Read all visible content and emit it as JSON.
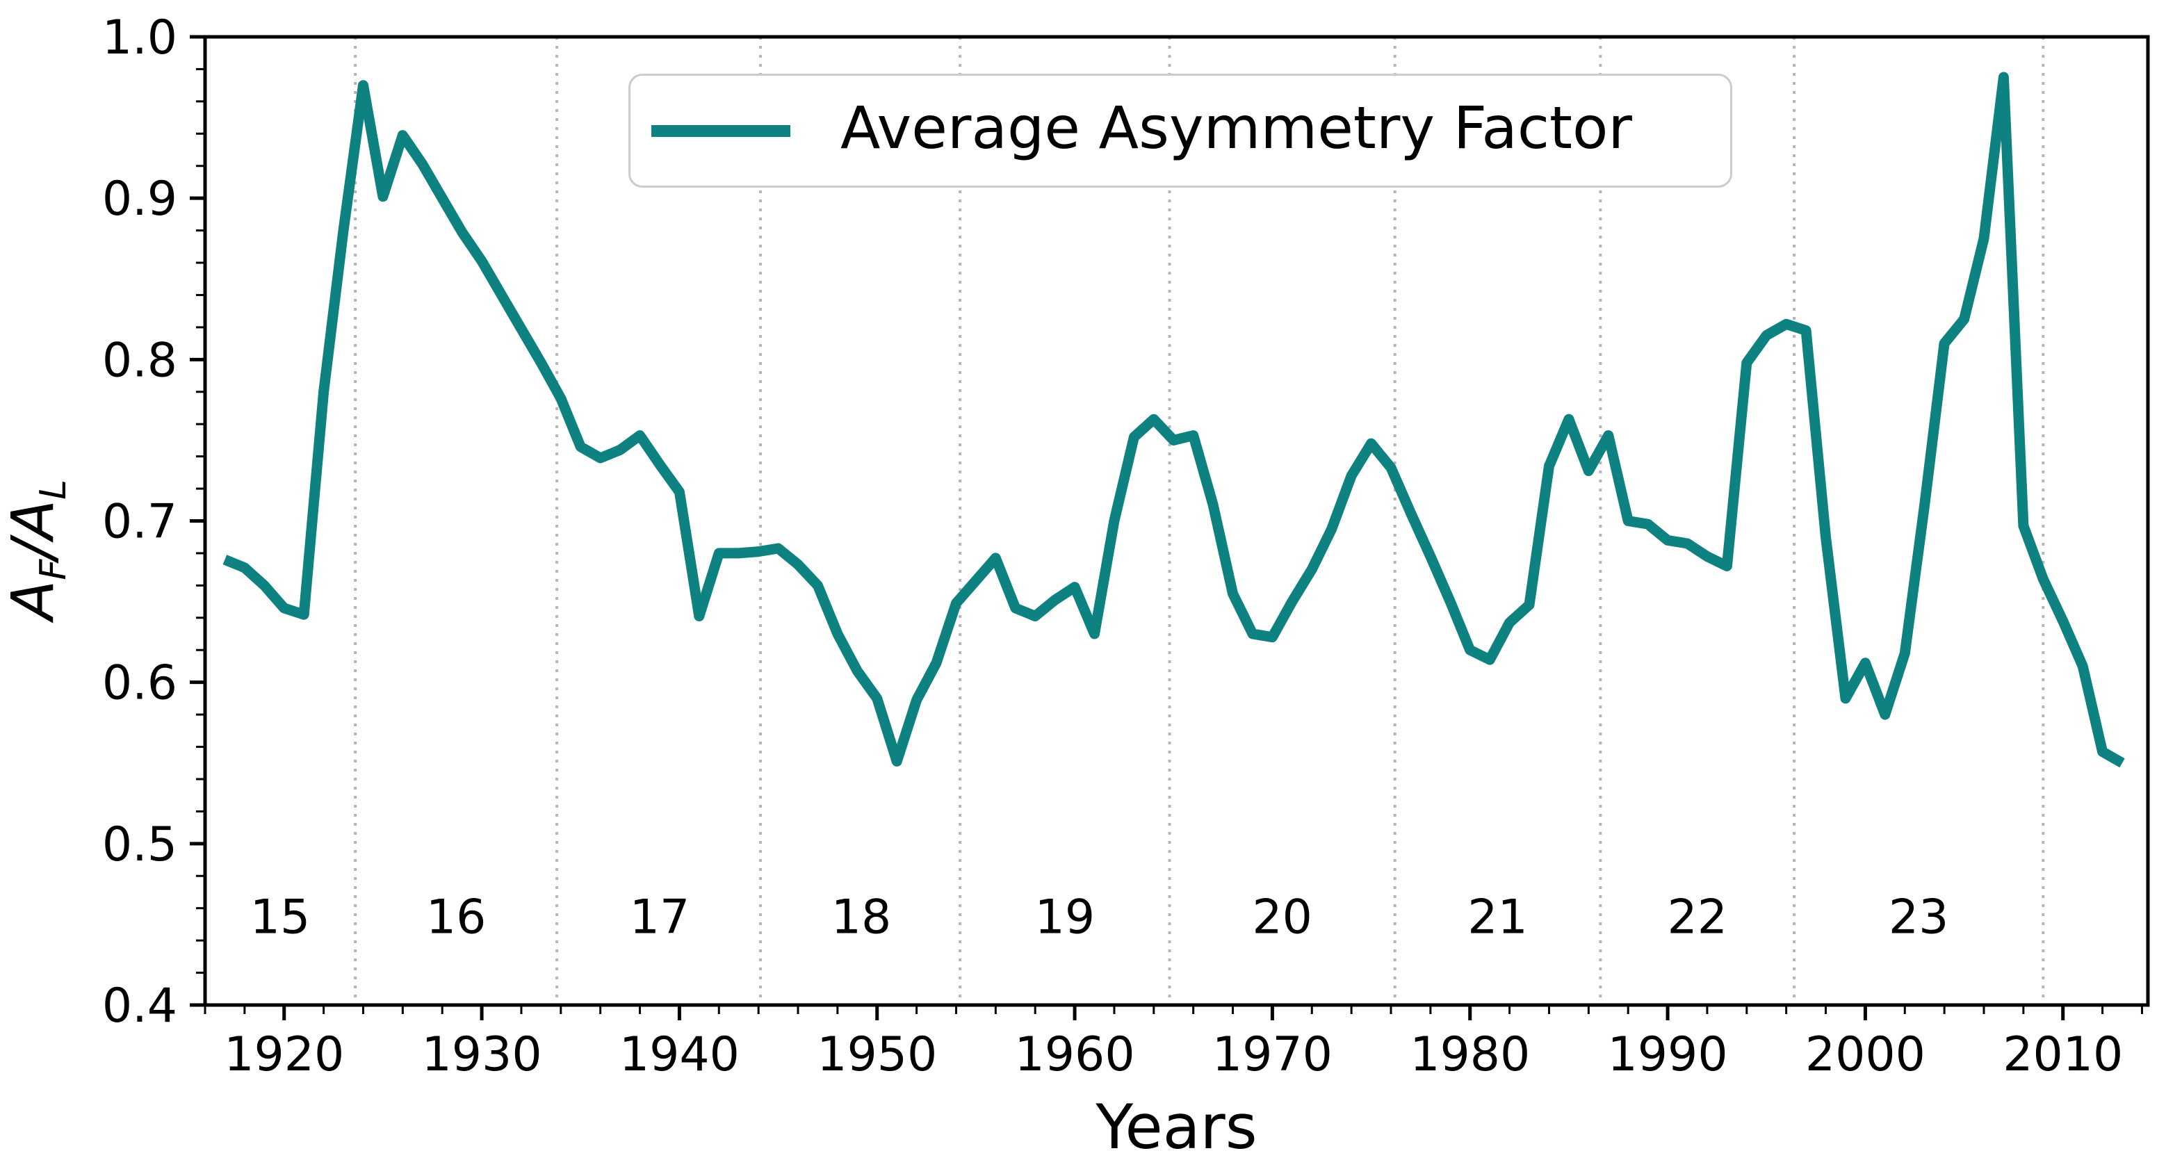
{
  "chart_data": {
    "type": "line",
    "title": "",
    "xlabel": "Years",
    "ylabel": "A_F/A_L",
    "ylabel_parts": {
      "num_base": "A",
      "num_sub": "F",
      "slash": "/",
      "den_base": "A",
      "den_sub": "L"
    },
    "legend": {
      "label": "Average Asymmetry Factor",
      "position": "upper center"
    },
    "line_color": "#0e8181",
    "grid_color": "#b5b5b5",
    "axis_color": "#000000",
    "x_range": [
      1916.0,
      2014.3
    ],
    "y_range": [
      0.4,
      1.0
    ],
    "x_ticks": [
      1920,
      1930,
      1940,
      1950,
      1960,
      1970,
      1980,
      1990,
      2000,
      2010
    ],
    "y_ticks": [
      0.4,
      0.5,
      0.6,
      0.7,
      0.8,
      0.9,
      1.0
    ],
    "x_minor_step": 2,
    "y_minor_step": 0.02,
    "cycle_boundaries": [
      1923.6,
      1933.8,
      1944.1,
      1954.2,
      1964.8,
      1976.2,
      1986.6,
      1996.4,
      2009.0
    ],
    "cycle_labels": [
      {
        "label": "15",
        "x": 1919.8
      },
      {
        "label": "16",
        "x": 1928.7
      },
      {
        "label": "17",
        "x": 1939.0
      },
      {
        "label": "18",
        "x": 1949.2
      },
      {
        "label": "19",
        "x": 1959.5
      },
      {
        "label": "20",
        "x": 1970.5
      },
      {
        "label": "21",
        "x": 1981.4
      },
      {
        "label": "22",
        "x": 1991.5
      },
      {
        "label": "23",
        "x": 2002.7
      }
    ],
    "cycle_label_y_value": 0.455,
    "series": [
      {
        "name": "Average Asymmetry Factor",
        "x": [
          1917,
          1918,
          1919,
          1920,
          1921,
          1922,
          1923,
          1924,
          1925,
          1926,
          1927,
          1928,
          1929,
          1930,
          1931,
          1932,
          1933,
          1934,
          1935,
          1936,
          1937,
          1938,
          1939,
          1940,
          1941,
          1942,
          1943,
          1944,
          1945,
          1946,
          1947,
          1948,
          1949,
          1950,
          1951,
          1952,
          1953,
          1954,
          1955,
          1956,
          1957,
          1958,
          1959,
          1960,
          1961,
          1962,
          1963,
          1964,
          1965,
          1966,
          1967,
          1968,
          1969,
          1970,
          1971,
          1972,
          1973,
          1974,
          1975,
          1976,
          1977,
          1978,
          1979,
          1980,
          1981,
          1982,
          1983,
          1984,
          1985,
          1986,
          1987,
          1988,
          1989,
          1990,
          1991,
          1992,
          1993,
          1994,
          1995,
          1996,
          1997,
          1998,
          1999,
          2000,
          2001,
          2002,
          2003,
          2004,
          2005,
          2006,
          2007,
          2008,
          2009,
          2010,
          2011,
          2012,
          2013
        ],
        "y": [
          0.676,
          0.671,
          0.66,
          0.646,
          0.642,
          0.78,
          0.88,
          0.97,
          0.901,
          0.939,
          0.921,
          0.9,
          0.879,
          0.861,
          0.84,
          0.819,
          0.798,
          0.776,
          0.746,
          0.739,
          0.744,
          0.753,
          0.735,
          0.718,
          0.641,
          0.68,
          0.68,
          0.681,
          0.683,
          0.673,
          0.66,
          0.63,
          0.607,
          0.59,
          0.551,
          0.589,
          0.612,
          0.649,
          0.663,
          0.677,
          0.646,
          0.641,
          0.651,
          0.659,
          0.63,
          0.7,
          0.752,
          0.763,
          0.75,
          0.753,
          0.71,
          0.655,
          0.63,
          0.628,
          0.65,
          0.67,
          0.695,
          0.728,
          0.748,
          0.733,
          0.705,
          0.678,
          0.65,
          0.62,
          0.614,
          0.637,
          0.648,
          0.734,
          0.763,
          0.731,
          0.753,
          0.7,
          0.698,
          0.688,
          0.686,
          0.678,
          0.672,
          0.798,
          0.815,
          0.822,
          0.818,
          0.69,
          0.59,
          0.612,
          0.58,
          0.618,
          0.71,
          0.81,
          0.825,
          0.875,
          0.975,
          0.697,
          0.664,
          0.638,
          0.61,
          0.557,
          0.55
        ]
      }
    ],
    "layout": {
      "plot_left": 295,
      "plot_top": 53,
      "plot_right": 3090,
      "plot_bottom": 1446,
      "spine_width": 5,
      "major_tick_len": 22,
      "minor_tick_len": 13,
      "line_width": 15,
      "tick_font_size": 68,
      "cycle_font_size": 68
    }
  }
}
